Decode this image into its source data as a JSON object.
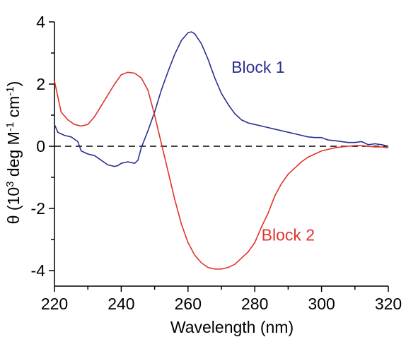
{
  "chart_data": {
    "type": "line",
    "xlabel": "Wavelength (nm)",
    "ylabel_parts": [
      "θ (10",
      "3",
      " deg M",
      "-1",
      " cm",
      "-1",
      ")"
    ],
    "xlim": [
      220,
      320
    ],
    "ylim": [
      -4.5,
      4
    ],
    "x_ticks": [
      220,
      240,
      260,
      280,
      300,
      320
    ],
    "y_ticks": [
      4,
      2,
      0,
      -2,
      -4
    ],
    "x_minor_step": 10,
    "y_minor_step": 1,
    "zero_line": {
      "y": 0,
      "style": "dashed"
    },
    "series": [
      {
        "name": "Block 1",
        "color": "#2b2f8f",
        "label_at": [
          273,
          2.55
        ],
        "points": [
          [
            220,
            0.7
          ],
          [
            221,
            0.45
          ],
          [
            222,
            0.4
          ],
          [
            223,
            0.35
          ],
          [
            225,
            0.3
          ],
          [
            227,
            0.15
          ],
          [
            228,
            -0.15
          ],
          [
            230,
            -0.25
          ],
          [
            232,
            -0.3
          ],
          [
            234,
            -0.45
          ],
          [
            236,
            -0.6
          ],
          [
            238,
            -0.65
          ],
          [
            239,
            -0.62
          ],
          [
            240,
            -0.55
          ],
          [
            242,
            -0.5
          ],
          [
            244,
            -0.55
          ],
          [
            245,
            -0.45
          ],
          [
            246,
            -0.05
          ],
          [
            248,
            0.5
          ],
          [
            250,
            1.1
          ],
          [
            252,
            1.8
          ],
          [
            254,
            2.4
          ],
          [
            256,
            2.95
          ],
          [
            258,
            3.4
          ],
          [
            260,
            3.65
          ],
          [
            261,
            3.68
          ],
          [
            262,
            3.62
          ],
          [
            264,
            3.3
          ],
          [
            266,
            2.8
          ],
          [
            268,
            2.2
          ],
          [
            270,
            1.7
          ],
          [
            272,
            1.35
          ],
          [
            274,
            1.05
          ],
          [
            276,
            0.85
          ],
          [
            278,
            0.75
          ],
          [
            280,
            0.7
          ],
          [
            282,
            0.65
          ],
          [
            284,
            0.6
          ],
          [
            286,
            0.55
          ],
          [
            288,
            0.5
          ],
          [
            290,
            0.45
          ],
          [
            292,
            0.4
          ],
          [
            294,
            0.35
          ],
          [
            296,
            0.3
          ],
          [
            298,
            0.28
          ],
          [
            300,
            0.28
          ],
          [
            302,
            0.2
          ],
          [
            304,
            0.18
          ],
          [
            306,
            0.15
          ],
          [
            308,
            0.12
          ],
          [
            310,
            0.12
          ],
          [
            312,
            0.15
          ],
          [
            314,
            0.05
          ],
          [
            316,
            0.08
          ],
          [
            318,
            0.05
          ],
          [
            320,
            0.0
          ]
        ]
      },
      {
        "name": "Block 2",
        "color": "#e1322b",
        "label_at": [
          282,
          -2.85
        ],
        "points": [
          [
            220,
            2.1
          ],
          [
            221,
            1.6
          ],
          [
            222,
            1.1
          ],
          [
            224,
            0.85
          ],
          [
            226,
            0.7
          ],
          [
            228,
            0.65
          ],
          [
            230,
            0.7
          ],
          [
            232,
            0.95
          ],
          [
            234,
            1.3
          ],
          [
            236,
            1.65
          ],
          [
            238,
            2.0
          ],
          [
            240,
            2.3
          ],
          [
            242,
            2.38
          ],
          [
            244,
            2.35
          ],
          [
            246,
            2.2
          ],
          [
            248,
            1.8
          ],
          [
            250,
            1.0
          ],
          [
            252,
            0.1
          ],
          [
            254,
            -0.8
          ],
          [
            256,
            -1.7
          ],
          [
            258,
            -2.5
          ],
          [
            260,
            -3.1
          ],
          [
            262,
            -3.5
          ],
          [
            264,
            -3.75
          ],
          [
            266,
            -3.9
          ],
          [
            268,
            -3.95
          ],
          [
            270,
            -3.95
          ],
          [
            272,
            -3.9
          ],
          [
            274,
            -3.8
          ],
          [
            276,
            -3.6
          ],
          [
            278,
            -3.4
          ],
          [
            280,
            -3.1
          ],
          [
            282,
            -2.6
          ],
          [
            284,
            -2.15
          ],
          [
            286,
            -1.6
          ],
          [
            288,
            -1.2
          ],
          [
            290,
            -0.9
          ],
          [
            292,
            -0.7
          ],
          [
            294,
            -0.5
          ],
          [
            296,
            -0.35
          ],
          [
            298,
            -0.25
          ],
          [
            300,
            -0.15
          ],
          [
            302,
            -0.1
          ],
          [
            304,
            -0.05
          ],
          [
            306,
            -0.02
          ],
          [
            308,
            0.0
          ],
          [
            310,
            0.02
          ],
          [
            312,
            0.02
          ],
          [
            314,
            0.0
          ],
          [
            316,
            -0.02
          ],
          [
            318,
            -0.02
          ],
          [
            320,
            -0.05
          ]
        ]
      }
    ]
  }
}
